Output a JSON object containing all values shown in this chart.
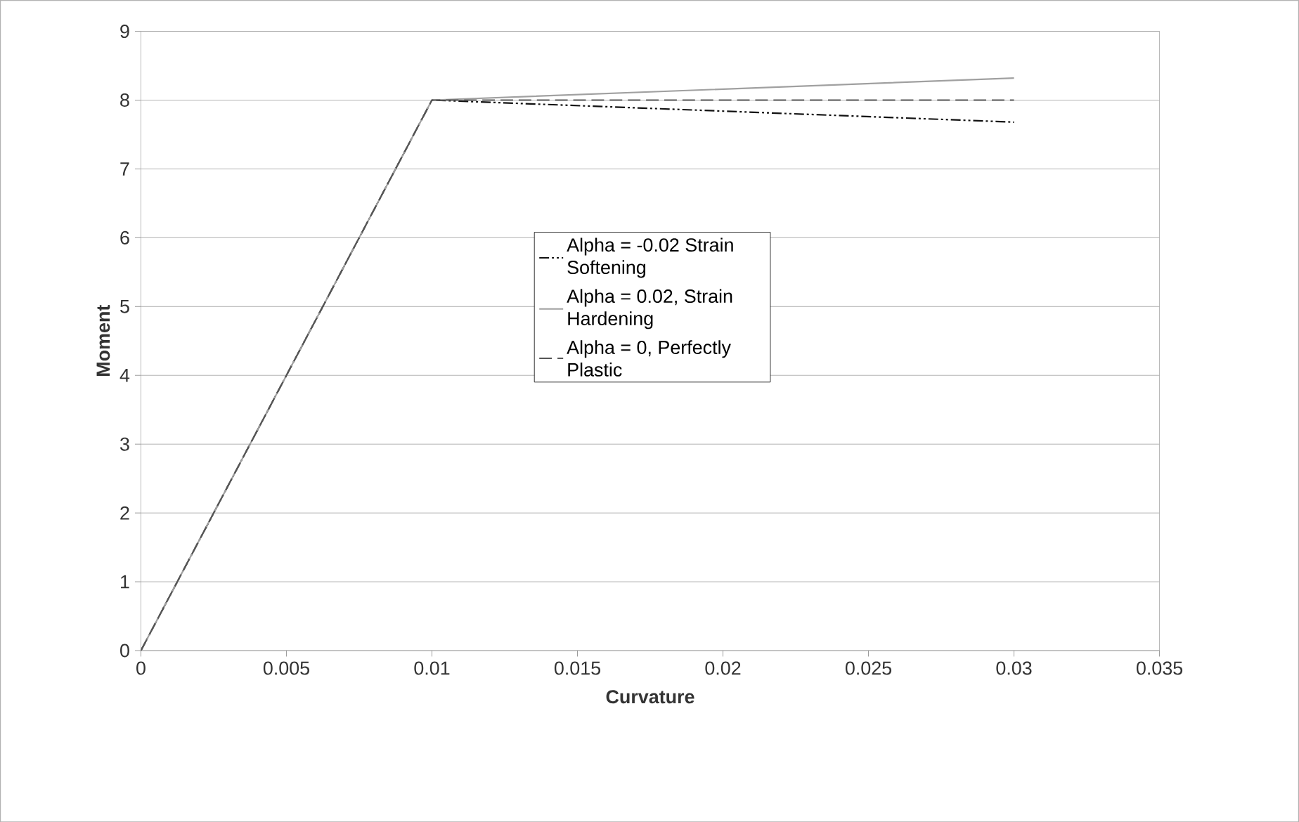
{
  "chart_data": {
    "type": "line",
    "xlabel": "Curvature",
    "ylabel": "Moment",
    "xlim": [
      0,
      0.035
    ],
    "xticks": [
      0,
      0.005,
      0.01,
      0.015,
      0.02,
      0.025,
      0.03,
      0.035
    ],
    "ylim": [
      0,
      9
    ],
    "yticks": [
      0,
      1,
      2,
      3,
      4,
      5,
      6,
      7,
      8,
      9
    ],
    "grid": "y",
    "legend": "right",
    "marker": "none",
    "series": [
      {
        "name": "Alpha = -0.02 Strain Softening",
        "color": "#111111",
        "line_style": "dashdotdotted",
        "x": [
          0,
          0.01,
          0.03
        ],
        "values": [
          0,
          8,
          7.68
        ]
      },
      {
        "name": "Alpha = 0.02, Strain Hardening",
        "color": "#a0a0a0",
        "line_style": "solid",
        "x": [
          0,
          0.01,
          0.03
        ],
        "values": [
          0,
          8,
          8.32
        ]
      },
      {
        "name": "Alpha = 0, Perfectly Plastic",
        "color": "#555555",
        "line_style": "dashed",
        "x": [
          0,
          0.01,
          0.03
        ],
        "values": [
          0,
          8,
          8
        ]
      }
    ]
  }
}
